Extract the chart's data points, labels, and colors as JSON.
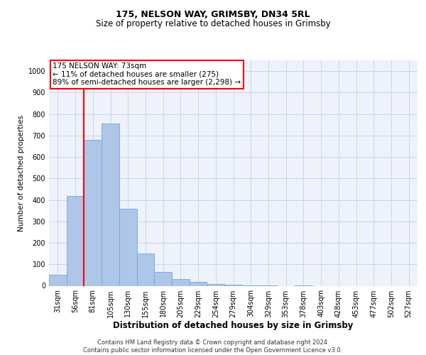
{
  "title1": "175, NELSON WAY, GRIMSBY, DN34 5RL",
  "title2": "Size of property relative to detached houses in Grimsby",
  "xlabel": "Distribution of detached houses by size in Grimsby",
  "ylabel": "Number of detached properties",
  "categories": [
    "31sqm",
    "56sqm",
    "81sqm",
    "105sqm",
    "130sqm",
    "155sqm",
    "180sqm",
    "205sqm",
    "229sqm",
    "254sqm",
    "279sqm",
    "304sqm",
    "329sqm",
    "353sqm",
    "378sqm",
    "403sqm",
    "428sqm",
    "453sqm",
    "477sqm",
    "502sqm",
    "527sqm"
  ],
  "values": [
    50,
    420,
    680,
    755,
    360,
    150,
    65,
    30,
    18,
    8,
    4,
    2,
    1,
    0,
    1,
    0,
    0,
    0,
    0,
    0,
    0
  ],
  "bar_color": "#aec6e8",
  "bar_edge_color": "#6aaad4",
  "vline_color": "red",
  "annotation_text": "175 NELSON WAY: 73sqm\n← 11% of detached houses are smaller (275)\n89% of semi-detached houses are larger (2,298) →",
  "annotation_box_color": "white",
  "annotation_box_edge": "red",
  "ylim": [
    0,
    1050
  ],
  "yticks": [
    0,
    100,
    200,
    300,
    400,
    500,
    600,
    700,
    800,
    900,
    1000
  ],
  "footnote": "Contains HM Land Registry data © Crown copyright and database right 2024.\nContains public sector information licensed under the Open Government Licence v3.0.",
  "bg_color": "#eef2fb",
  "grid_color": "#c8d4ee",
  "title1_fontsize": 9,
  "title2_fontsize": 8.5,
  "xlabel_fontsize": 8.5,
  "ylabel_fontsize": 7.5,
  "tick_fontsize": 7,
  "footnote_fontsize": 6,
  "annot_fontsize": 7.5
}
